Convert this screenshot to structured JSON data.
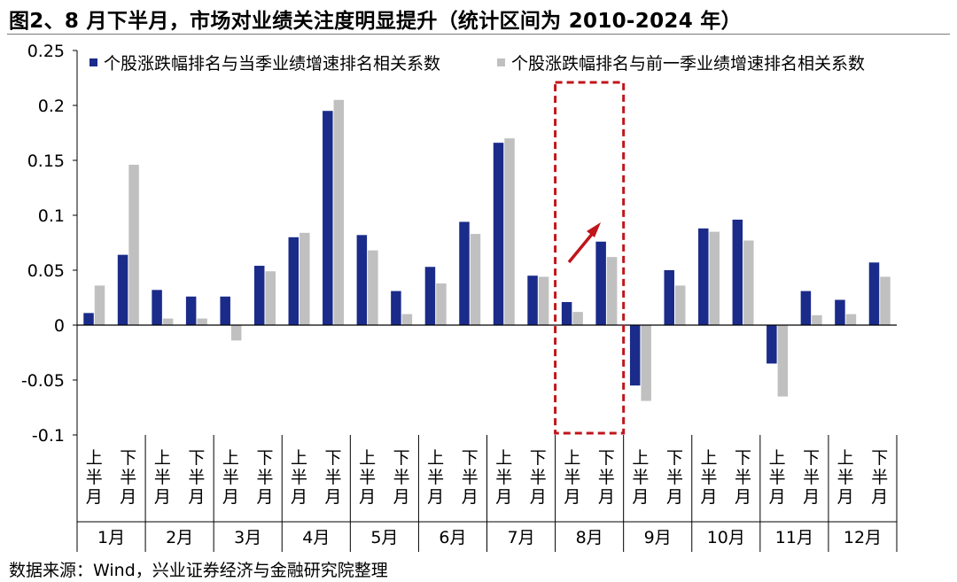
{
  "title": "图2、8 月下半月，市场对业绩关注度明显提升（统计区间为 2010-2024 年）",
  "source": "数据来源：Wind，兴业证券经济与金融研究院整理",
  "colors": {
    "series1": "#1a2b8a",
    "series2": "#c0c0c0",
    "highlight": "#c0151b"
  },
  "chart_data": {
    "type": "bar",
    "title": "",
    "xlabel": "",
    "ylabel": "",
    "ylim": [
      -0.1,
      0.25
    ],
    "yticks": [
      -0.1,
      -0.05,
      0,
      0.05,
      0.1,
      0.15,
      0.2,
      0.25
    ],
    "ytick_labels": [
      "-0.1",
      "-0.05",
      "0",
      "0.05",
      "0.1",
      "0.15",
      "0.2",
      "0.25"
    ],
    "grid": false,
    "legend_position": "top",
    "sub_label_top": "上半月",
    "sub_label_bottom": "下半月",
    "months": [
      "1月",
      "2月",
      "3月",
      "4月",
      "5月",
      "6月",
      "7月",
      "8月",
      "9月",
      "10月",
      "11月",
      "12月"
    ],
    "categories": [
      "1月上半月",
      "1月下半月",
      "2月上半月",
      "2月下半月",
      "3月上半月",
      "3月下半月",
      "4月上半月",
      "4月下半月",
      "5月上半月",
      "5月下半月",
      "6月上半月",
      "6月下半月",
      "7月上半月",
      "7月下半月",
      "8月上半月",
      "8月下半月",
      "9月上半月",
      "9月下半月",
      "10月上半月",
      "10月下半月",
      "11月上半月",
      "11月下半月",
      "12月上半月",
      "12月下半月"
    ],
    "series": [
      {
        "name": "个股涨跌幅排名与当季业绩增速排名相关系数",
        "values": [
          0.011,
          0.064,
          0.032,
          0.026,
          0.026,
          0.054,
          0.08,
          0.195,
          0.082,
          0.031,
          0.053,
          0.094,
          0.166,
          0.045,
          0.021,
          0.076,
          -0.055,
          0.05,
          0.088,
          0.096,
          -0.035,
          0.031,
          0.023,
          0.057
        ]
      },
      {
        "name": "个股涨跌幅排名与前一季业绩增速排名相关系数",
        "values": [
          0.036,
          0.146,
          0.006,
          0.006,
          -0.014,
          0.049,
          0.084,
          0.205,
          0.068,
          0.01,
          0.038,
          0.083,
          0.17,
          0.044,
          0.012,
          0.062,
          -0.069,
          0.036,
          0.085,
          0.077,
          -0.065,
          0.009,
          0.01,
          0.044
        ]
      }
    ],
    "highlight_month": "8月"
  }
}
